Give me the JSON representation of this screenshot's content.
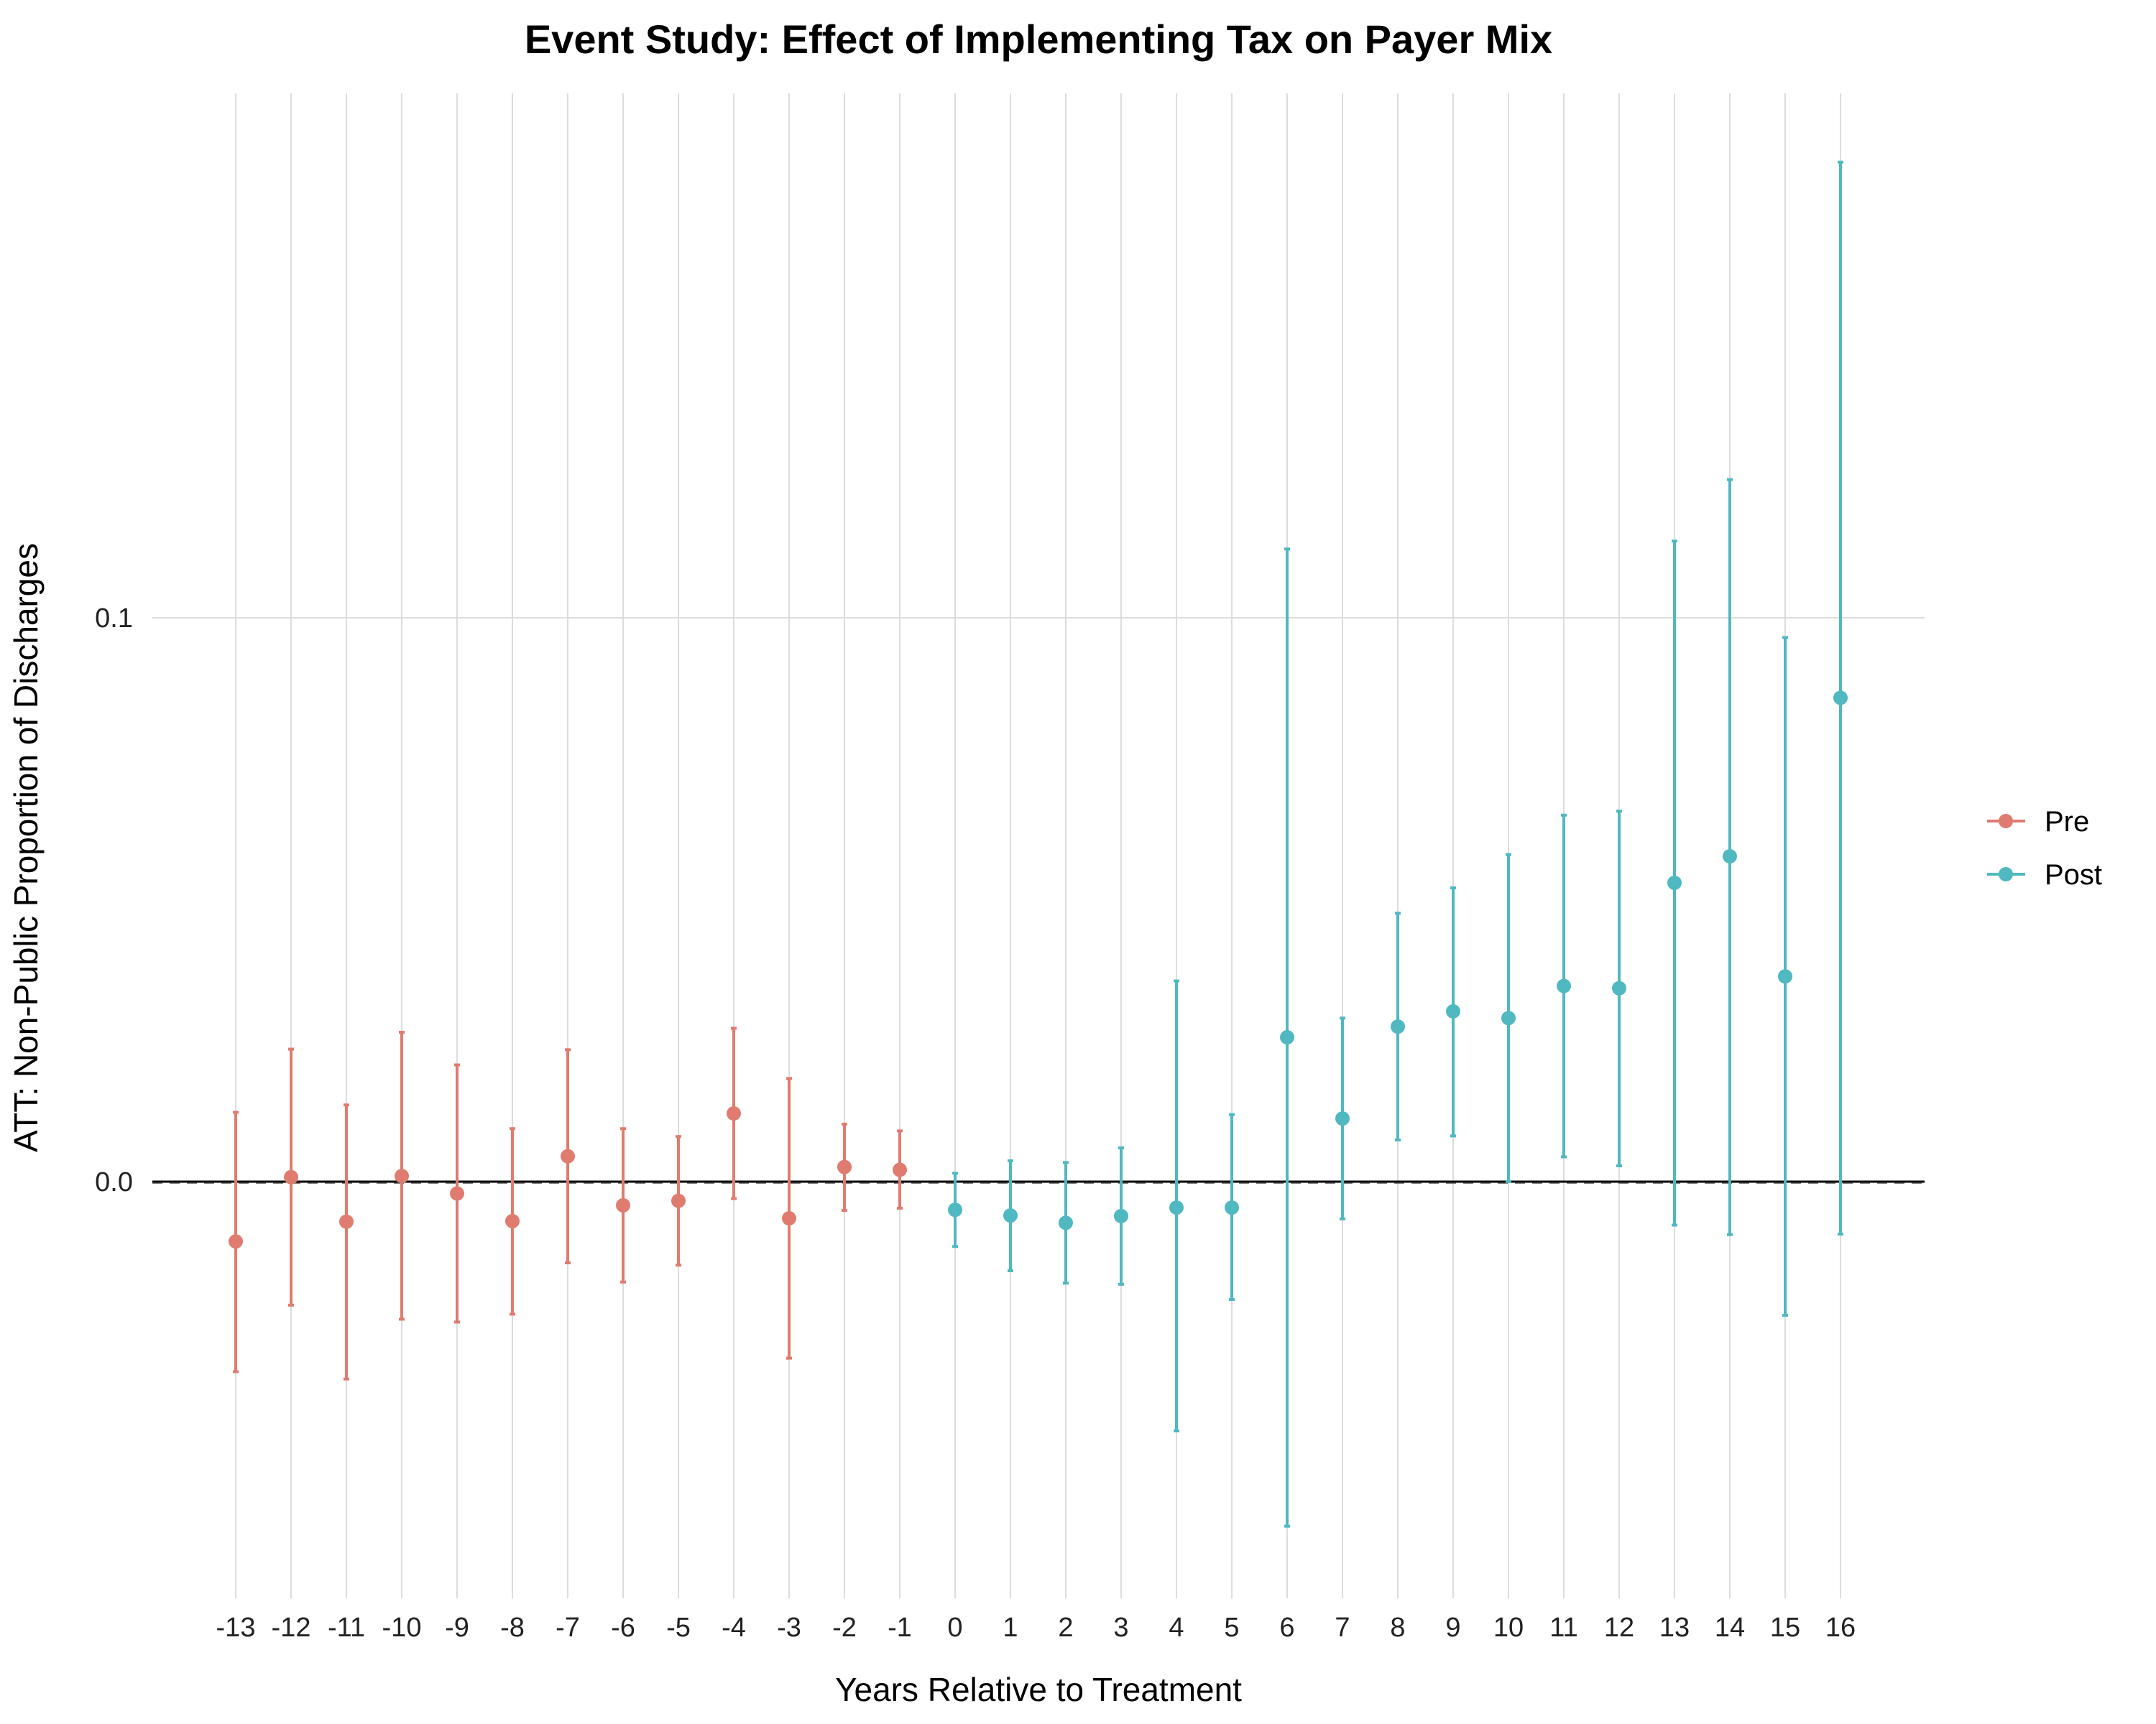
{
  "chart_data": {
    "type": "scatter",
    "title": "Event Study: Effect of Implementing Tax on Payer Mix",
    "xlabel": "Years Relative to Treatment",
    "ylabel": "ATT: Non-Public Proportion of Discharges",
    "xlim": [
      -13,
      16
    ],
    "ylim": [
      -0.072,
      0.19
    ],
    "y_ticks": [
      0.0,
      0.1
    ],
    "y_tick_labels": [
      "0.0",
      "0.1"
    ],
    "reference_line": 0,
    "grid": true,
    "legend_position": "right",
    "series": [
      {
        "name": "Pre",
        "color": "#E07B6F",
        "x": [
          -13,
          -12,
          -11,
          -10,
          -9,
          -8,
          -7,
          -6,
          -5,
          -4,
          -3,
          -2,
          -1
        ],
        "values": [
          -0.0106,
          0.0008,
          -0.0071,
          0.001,
          -0.0021,
          -0.007,
          0.0045,
          -0.0042,
          -0.0034,
          0.0121,
          -0.0065,
          0.0026,
          0.0021
        ],
        "lower": [
          -0.0337,
          -0.0219,
          -0.035,
          -0.0244,
          -0.0249,
          -0.0235,
          -0.0144,
          -0.0178,
          -0.0148,
          -0.003,
          -0.0313,
          -0.0051,
          -0.0047
        ],
        "upper": [
          0.0123,
          0.0235,
          0.0136,
          0.0265,
          0.0207,
          0.0094,
          0.0234,
          0.0094,
          0.008,
          0.0272,
          0.0183,
          0.0102,
          0.009
        ]
      },
      {
        "name": "Post",
        "color": "#4FB8C0",
        "x": [
          0,
          1,
          2,
          3,
          4,
          5,
          6,
          7,
          8,
          9,
          10,
          11,
          12,
          13,
          14,
          15,
          16
        ],
        "values": [
          -0.005,
          -0.006,
          -0.0073,
          -0.0061,
          -0.0046,
          -0.0046,
          0.0256,
          0.0112,
          0.0275,
          0.0302,
          0.029,
          0.0347,
          0.0343,
          0.053,
          0.0577,
          0.0364,
          0.0858
        ],
        "lower": [
          -0.0115,
          -0.0158,
          -0.018,
          -0.0182,
          -0.0442,
          -0.0209,
          -0.0611,
          -0.0066,
          0.0074,
          0.0081,
          0.0,
          0.0044,
          0.0028,
          -0.0077,
          -0.0094,
          -0.0237,
          -0.0093
        ],
        "upper": [
          0.0015,
          0.0037,
          0.0034,
          0.006,
          0.0356,
          0.0119,
          0.1122,
          0.029,
          0.0476,
          0.0521,
          0.058,
          0.065,
          0.0657,
          0.1136,
          0.1245,
          0.0965,
          0.1808
        ]
      }
    ]
  }
}
